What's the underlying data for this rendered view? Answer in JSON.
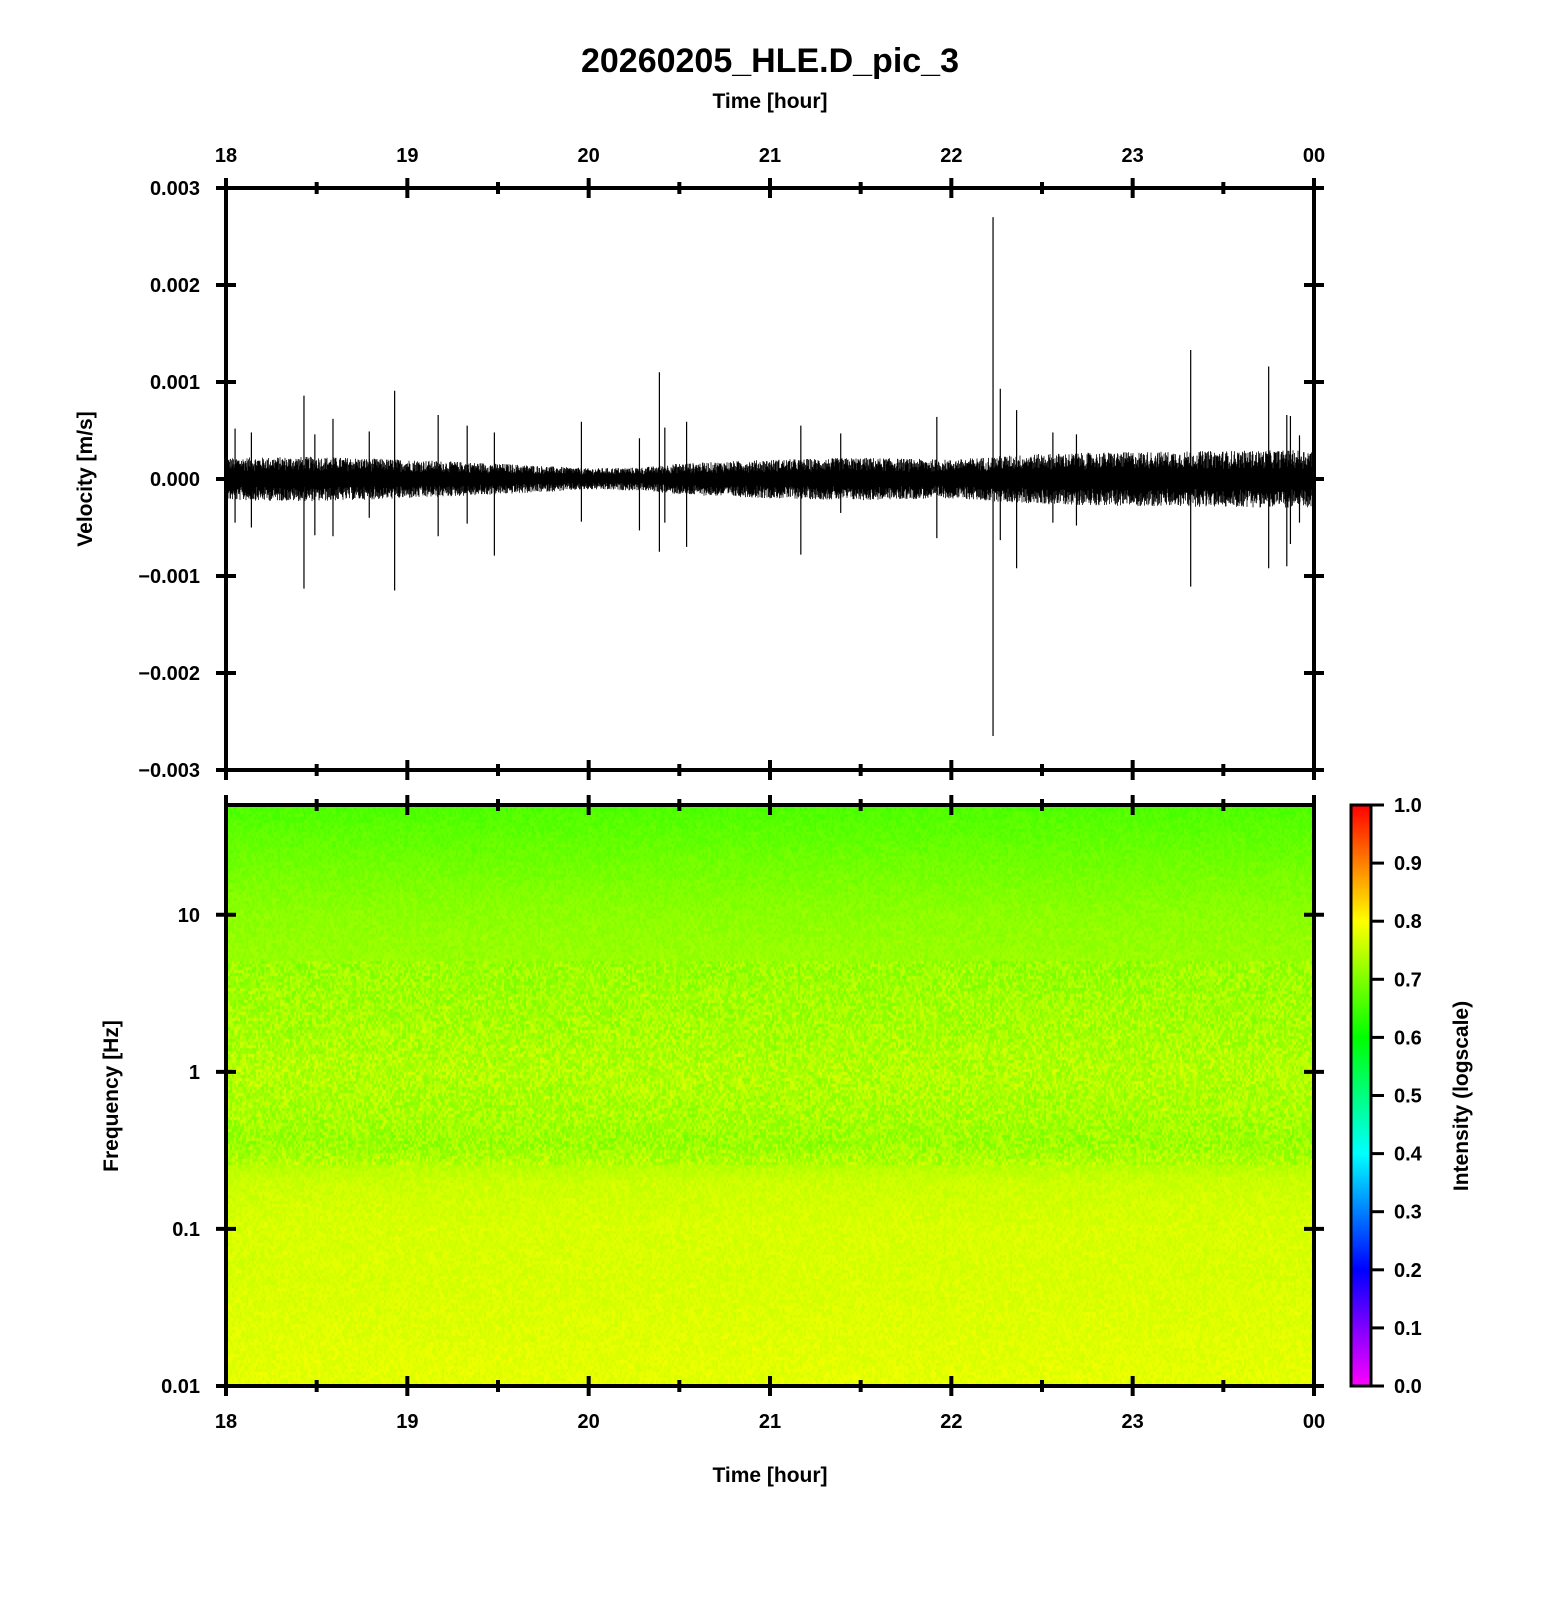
{
  "chart_data": [
    {
      "type": "line",
      "title": "20260205_HLE.D_pic_3",
      "top_xlabel": "Time [hour]",
      "ylabel": "Velocity [m/s]",
      "x_ticks": [
        "18",
        "19",
        "20",
        "21",
        "22",
        "23",
        "00"
      ],
      "xlim_hours": [
        18,
        24
      ],
      "ylim": [
        -0.003,
        0.003
      ],
      "y_ticks": [
        0.003,
        0.002,
        0.001,
        0.0,
        -0.001,
        -0.002,
        -0.003
      ],
      "y_tick_labels": [
        "0.003",
        "0.002",
        "0.001",
        "0.000",
        "−0.001",
        "−0.002",
        "−0.003"
      ],
      "grid": false,
      "trace_color": "#000000",
      "noise_envelope": {
        "hours": [
          18.0,
          18.5,
          19.0,
          19.5,
          20.0,
          20.3,
          20.5,
          21.0,
          21.5,
          22.0,
          22.3,
          22.5,
          23.0,
          23.5,
          24.0
        ],
        "amplitude": [
          0.00022,
          0.00023,
          0.0002,
          0.00016,
          0.00011,
          0.00012,
          0.00016,
          0.0002,
          0.00022,
          0.0002,
          0.00024,
          0.00026,
          0.00028,
          0.00029,
          0.0003
        ]
      },
      "spikes": [
        {
          "hour": 18.05,
          "max": 0.00052,
          "min": -0.00045
        },
        {
          "hour": 18.14,
          "max": 0.00048,
          "min": -0.0005
        },
        {
          "hour": 18.43,
          "max": 0.00086,
          "min": -0.00113
        },
        {
          "hour": 18.49,
          "max": 0.00046,
          "min": -0.00058
        },
        {
          "hour": 18.59,
          "max": 0.00062,
          "min": -0.00059
        },
        {
          "hour": 18.79,
          "max": 0.00049,
          "min": -0.0004
        },
        {
          "hour": 18.93,
          "max": 0.00091,
          "min": -0.00115
        },
        {
          "hour": 19.17,
          "max": 0.00066,
          "min": -0.00059
        },
        {
          "hour": 19.33,
          "max": 0.00055,
          "min": -0.00046
        },
        {
          "hour": 19.48,
          "max": 0.00048,
          "min": -0.00079
        },
        {
          "hour": 19.96,
          "max": 0.00059,
          "min": -0.00044
        },
        {
          "hour": 20.28,
          "max": 0.00042,
          "min": -0.00053
        },
        {
          "hour": 20.39,
          "max": 0.0011,
          "min": -0.00075
        },
        {
          "hour": 20.42,
          "max": 0.00053,
          "min": -0.00045
        },
        {
          "hour": 20.54,
          "max": 0.00059,
          "min": -0.0007
        },
        {
          "hour": 21.17,
          "max": 0.00055,
          "min": -0.00078
        },
        {
          "hour": 21.39,
          "max": 0.00047,
          "min": -0.00035
        },
        {
          "hour": 21.92,
          "max": 0.00064,
          "min": -0.00061
        },
        {
          "hour": 22.23,
          "max": 0.0027,
          "min": -0.00265
        },
        {
          "hour": 22.27,
          "max": 0.00093,
          "min": -0.00063
        },
        {
          "hour": 22.36,
          "max": 0.00071,
          "min": -0.00092
        },
        {
          "hour": 22.56,
          "max": 0.00048,
          "min": -0.00045
        },
        {
          "hour": 22.69,
          "max": 0.00046,
          "min": -0.00048
        },
        {
          "hour": 23.32,
          "max": 0.00133,
          "min": -0.00111
        },
        {
          "hour": 23.75,
          "max": 0.00116,
          "min": -0.00092
        },
        {
          "hour": 23.85,
          "max": 0.00066,
          "min": -0.0009
        },
        {
          "hour": 23.87,
          "max": 0.00065,
          "min": -0.00067
        },
        {
          "hour": 23.92,
          "max": 0.00045,
          "min": -0.00045
        }
      ]
    },
    {
      "type": "heatmap",
      "xlabel": "Time [hour]",
      "ylabel": "Frequency [Hz]",
      "x_ticks": [
        "18",
        "19",
        "20",
        "21",
        "22",
        "23",
        "00"
      ],
      "xlim_hours": [
        18,
        24
      ],
      "y_scale": "log",
      "ylim": [
        0.01,
        50
      ],
      "y_ticks": [
        10,
        1,
        0.1,
        0.01
      ],
      "y_tick_labels": [
        "10",
        "1",
        "0.1",
        "0.01"
      ],
      "colorbar": {
        "label": "Intensity (logscale)",
        "range": [
          0.0,
          1.0
        ],
        "ticks": [
          "1.0",
          "0.9",
          "0.8",
          "0.7",
          "0.6",
          "0.5",
          "0.4",
          "0.3",
          "0.2",
          "0.1",
          "0.0"
        ],
        "colors": [
          "#ff00ff",
          "#0000ff",
          "#00ffff",
          "#00ff00",
          "#ffff00",
          "#ff0000"
        ]
      },
      "intensity_profile": {
        "frequency_hz": [
          50,
          20,
          10,
          5,
          2,
          1,
          0.5,
          0.35,
          0.2,
          0.1,
          0.05,
          0.01
        ],
        "intensity": [
          0.66,
          0.69,
          0.71,
          0.72,
          0.73,
          0.74,
          0.73,
          0.72,
          0.76,
          0.77,
          0.77,
          0.78
        ]
      }
    }
  ]
}
